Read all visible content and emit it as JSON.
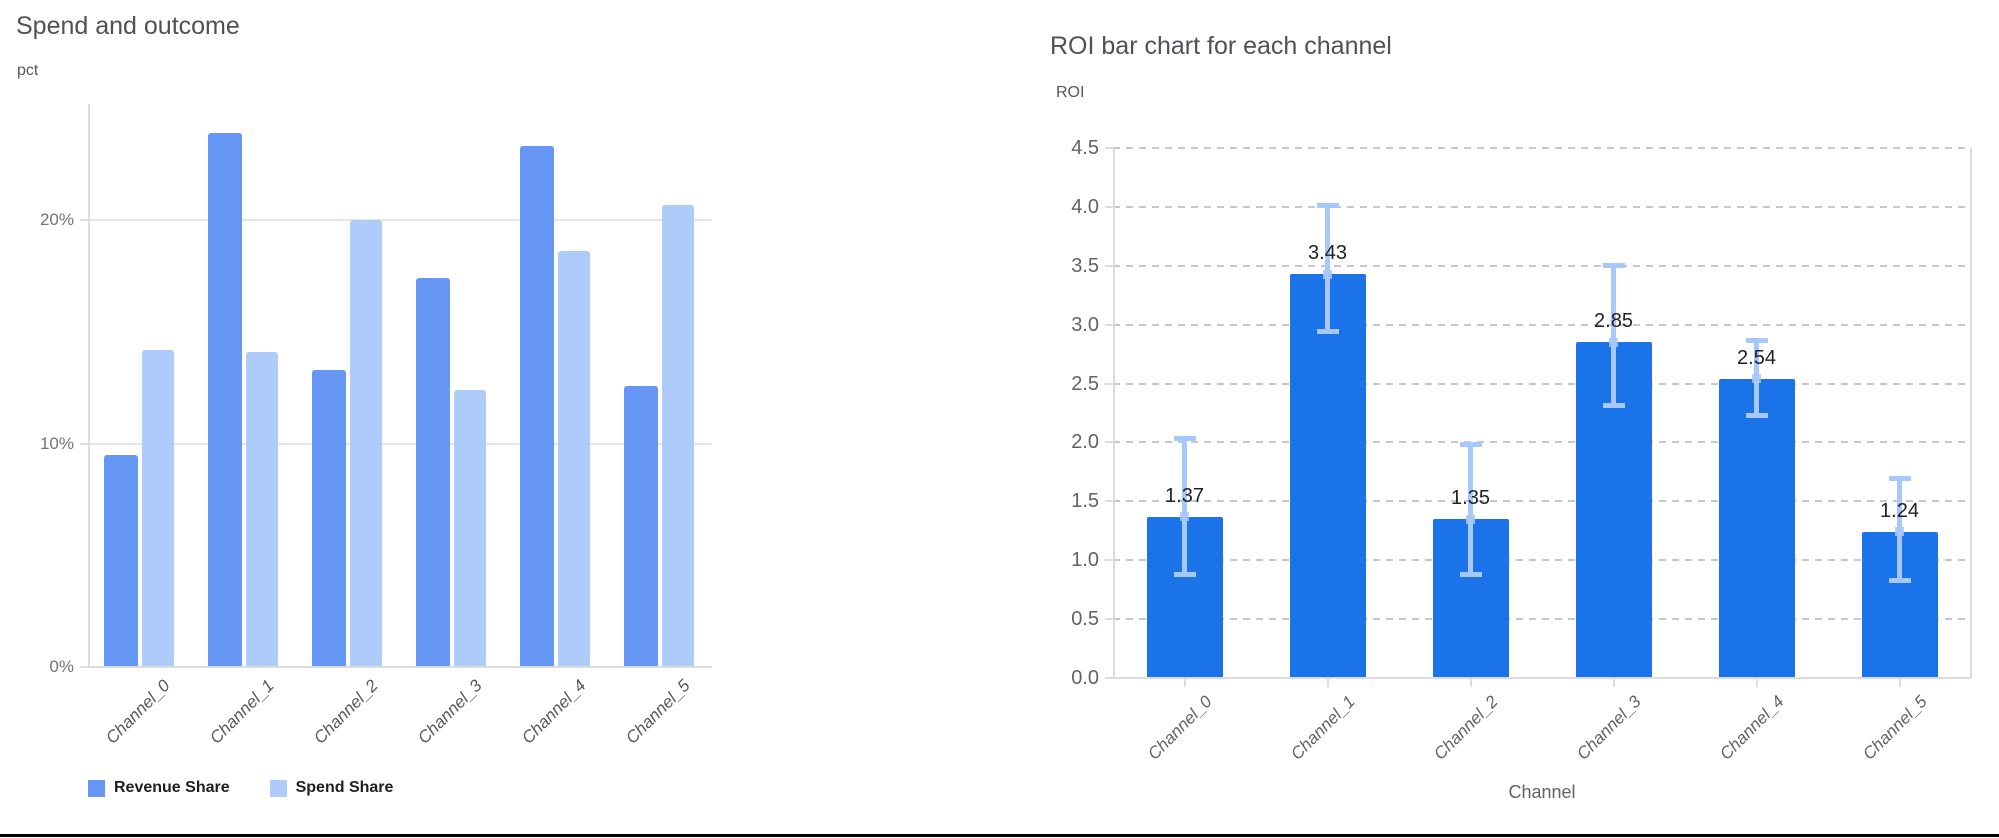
{
  "page": {
    "background": "#ffffff",
    "bottom_border_color": "#000000"
  },
  "chart_data": [
    {
      "type": "bar",
      "title": "Spend and outcome",
      "ylabel": "pct",
      "xlabel": "",
      "categories": [
        "Channel_0",
        "Channel_1",
        "Channel_2",
        "Channel_3",
        "Channel_4",
        "Channel_5"
      ],
      "series": [
        {
          "name": "Revenue Share",
          "color": "#6596f5",
          "values": [
            9.5,
            23.9,
            13.3,
            17.4,
            23.3,
            12.6
          ]
        },
        {
          "name": "Spend Share",
          "color": "#aecbfa",
          "values": [
            14.2,
            14.1,
            20.0,
            12.4,
            18.6,
            20.7
          ]
        }
      ],
      "y_ticks": [
        {
          "v": 0,
          "label": "0%"
        },
        {
          "v": 10,
          "label": "10%"
        },
        {
          "v": 20,
          "label": "20%"
        }
      ],
      "ylim": [
        0,
        25.2
      ],
      "grid": "solid",
      "legend_position": "bottom"
    },
    {
      "type": "bar",
      "title": "ROI bar chart for each channel",
      "ylabel": "ROI",
      "xlabel": "Channel",
      "categories": [
        "Channel_0",
        "Channel_1",
        "Channel_2",
        "Channel_3",
        "Channel_4",
        "Channel_5"
      ],
      "values": [
        1.37,
        3.43,
        1.35,
        2.85,
        2.54,
        1.24
      ],
      "data_labels": [
        "1.37",
        "3.43",
        "1.35",
        "2.85",
        "2.54",
        "1.24"
      ],
      "error_low": [
        0.88,
        2.95,
        0.88,
        2.32,
        2.23,
        0.83
      ],
      "error_high": [
        2.04,
        4.02,
        1.99,
        3.51,
        2.87,
        1.7
      ],
      "bar_color": "#1a73e8",
      "error_bar_color": "#a8c7fa",
      "y_ticks": [
        {
          "v": 0.0,
          "label": "0.0"
        },
        {
          "v": 0.5,
          "label": "0.5"
        },
        {
          "v": 1.0,
          "label": "1.0"
        },
        {
          "v": 1.5,
          "label": "1.5"
        },
        {
          "v": 2.0,
          "label": "2.0"
        },
        {
          "v": 2.5,
          "label": "2.5"
        },
        {
          "v": 3.0,
          "label": "3.0"
        },
        {
          "v": 3.5,
          "label": "3.5"
        },
        {
          "v": 4.0,
          "label": "4.0"
        },
        {
          "v": 4.5,
          "label": "4.5"
        }
      ],
      "ylim": [
        0,
        4.5
      ],
      "grid": "dashed",
      "legend_position": "none"
    }
  ]
}
